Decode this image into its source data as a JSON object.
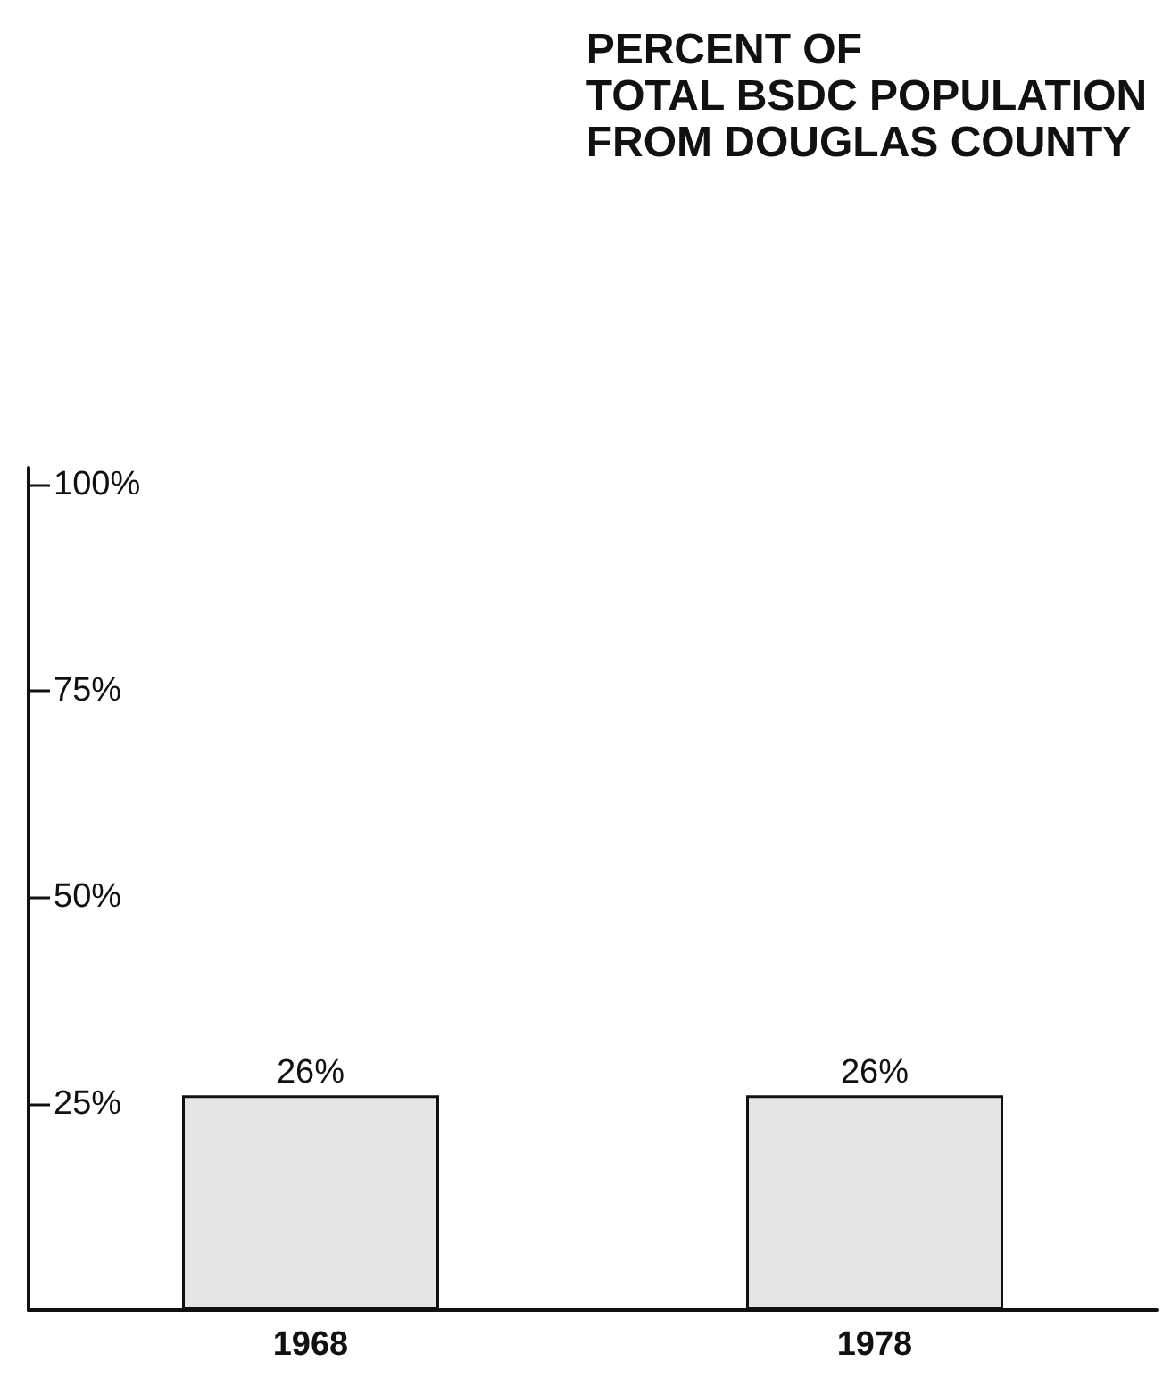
{
  "chart_data": {
    "type": "bar",
    "title": "PERCENT OF\nTOTAL BSDC POPULATION\nFROM DOUGLAS COUNTY",
    "categories": [
      "1968",
      "1978"
    ],
    "values": [
      26,
      26
    ],
    "value_labels": [
      "26%",
      "26%"
    ],
    "color": "#e6e6e6",
    "ylim": [
      0,
      102
    ],
    "yticks": [
      {
        "value": 25,
        "label": "25%"
      },
      {
        "value": 50,
        "label": "50%"
      },
      {
        "value": 75,
        "label": "75%"
      },
      {
        "value": 100,
        "label": "100%"
      }
    ],
    "grid": false
  }
}
